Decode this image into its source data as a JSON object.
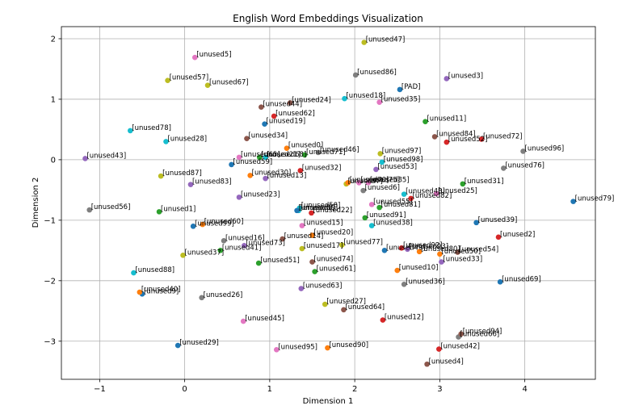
{
  "chart_data": {
    "type": "scatter",
    "title": "English Word Embeddings Visualization",
    "xlabel": "Dimension 1",
    "ylabel": "Dimension 2",
    "xlim": [
      -1.45,
      4.83
    ],
    "ylim": [
      -3.63,
      2.2
    ],
    "xticks": [
      -1,
      0,
      1,
      2,
      3,
      4
    ],
    "yticks": [
      -3,
      -2,
      -1,
      0,
      1,
      2
    ],
    "grid": true,
    "palette": [
      "#1f77b4",
      "#ff7f0e",
      "#2ca02c",
      "#d62728",
      "#9467bd",
      "#8c564b",
      "#e377c2",
      "#7f7f7f",
      "#bcbd22",
      "#17becf"
    ],
    "points": [
      {
        "label": "[PAD]",
        "x": 2.53,
        "y": 1.16,
        "color": "#1f77b4"
      },
      {
        "label": "[unused0]",
        "x": 1.2,
        "y": 0.19,
        "color": "#ff7f0e"
      },
      {
        "label": "[unused1]",
        "x": -0.3,
        "y": -0.86,
        "color": "#2ca02c"
      },
      {
        "label": "[unused2]",
        "x": 3.69,
        "y": -1.28,
        "color": "#d62728"
      },
      {
        "label": "[unused3]",
        "x": 3.08,
        "y": 1.34,
        "color": "#9467bd"
      },
      {
        "label": "[unused4]",
        "x": 2.85,
        "y": -3.38,
        "color": "#8c564b"
      },
      {
        "label": "[unused5]",
        "x": 0.12,
        "y": 1.69,
        "color": "#e377c2"
      },
      {
        "label": "[unused6]",
        "x": 2.1,
        "y": -0.51,
        "color": "#7f7f7f"
      },
      {
        "label": "[unused7]",
        "x": 1.9,
        "y": -0.4,
        "color": "#bcbd22"
      },
      {
        "label": "[unused8]",
        "x": 1.34,
        "y": -0.84,
        "color": "#17becf"
      },
      {
        "label": "[unused9]",
        "x": -0.5,
        "y": -2.22,
        "color": "#1f77b4"
      },
      {
        "label": "[unused10]",
        "x": 2.5,
        "y": -1.83,
        "color": "#ff7f0e"
      },
      {
        "label": "[unused11]",
        "x": 2.83,
        "y": 0.63,
        "color": "#2ca02c"
      },
      {
        "label": "[unused12]",
        "x": 2.33,
        "y": -2.65,
        "color": "#d62728"
      },
      {
        "label": "[unused13]",
        "x": 0.95,
        "y": -0.31,
        "color": "#9467bd"
      },
      {
        "label": "[unused14]",
        "x": 1.15,
        "y": -1.31,
        "color": "#8c564b"
      },
      {
        "label": "[unused15]",
        "x": 1.38,
        "y": -1.09,
        "color": "#e377c2"
      },
      {
        "label": "[unused16]",
        "x": 0.46,
        "y": -1.34,
        "color": "#7f7f7f"
      },
      {
        "label": "[unused17]",
        "x": 1.38,
        "y": -1.47,
        "color": "#bcbd22"
      },
      {
        "label": "[unused18]",
        "x": 1.88,
        "y": 1.01,
        "color": "#17becf"
      },
      {
        "label": "[unused19]",
        "x": 0.94,
        "y": 0.59,
        "color": "#1f77b4"
      },
      {
        "label": "[unused20]",
        "x": 1.5,
        "y": -1.25,
        "color": "#ff7f0e"
      },
      {
        "label": "[unused21]",
        "x": 0.88,
        "y": 0.04,
        "color": "#2ca02c"
      },
      {
        "label": "[unused22]",
        "x": 1.49,
        "y": -0.88,
        "color": "#d62728"
      },
      {
        "label": "[unused23]",
        "x": 0.64,
        "y": -0.62,
        "color": "#9467bd"
      },
      {
        "label": "[unused24]",
        "x": 1.24,
        "y": 0.94,
        "color": "#8c564b"
      },
      {
        "label": "[unused25]",
        "x": 2.96,
        "y": -0.56,
        "color": "#e377c2"
      },
      {
        "label": "[unused26]",
        "x": 0.2,
        "y": -2.28,
        "color": "#7f7f7f"
      },
      {
        "label": "[unused27]",
        "x": 1.65,
        "y": -2.39,
        "color": "#bcbd22"
      },
      {
        "label": "[unused28]",
        "x": -0.22,
        "y": 0.3,
        "color": "#17becf"
      },
      {
        "label": "[unused29]",
        "x": -0.08,
        "y": -3.07,
        "color": "#1f77b4"
      },
      {
        "label": "[unused30]",
        "x": 0.77,
        "y": -0.26,
        "color": "#ff7f0e"
      },
      {
        "label": "[unused31]",
        "x": 3.27,
        "y": -0.4,
        "color": "#2ca02c"
      },
      {
        "label": "[unused32]",
        "x": 1.36,
        "y": -0.18,
        "color": "#d62728"
      },
      {
        "label": "[unused33]",
        "x": 3.02,
        "y": -1.69,
        "color": "#9467bd"
      },
      {
        "label": "[unused34]",
        "x": 0.73,
        "y": 0.35,
        "color": "#8c564b"
      },
      {
        "label": "[unused35]",
        "x": 2.29,
        "y": 0.95,
        "color": "#e377c2"
      },
      {
        "label": "[unused36]",
        "x": 2.58,
        "y": -2.06,
        "color": "#7f7f7f"
      },
      {
        "label": "[unused37]",
        "x": -0.02,
        "y": -1.58,
        "color": "#bcbd22"
      },
      {
        "label": "[unused38]",
        "x": 2.2,
        "y": -1.09,
        "color": "#17becf"
      },
      {
        "label": "[unused39]",
        "x": 3.43,
        "y": -1.04,
        "color": "#1f77b4"
      },
      {
        "label": "[unused40]",
        "x": -0.53,
        "y": -2.19,
        "color": "#ff7f0e"
      },
      {
        "label": "[unused41]",
        "x": 0.42,
        "y": -1.5,
        "color": "#2ca02c"
      },
      {
        "label": "[unused42]",
        "x": 2.99,
        "y": -3.13,
        "color": "#d62728"
      },
      {
        "label": "[unused43]",
        "x": -1.17,
        "y": 0.02,
        "color": "#9467bd"
      },
      {
        "label": "[unused44]",
        "x": 0.9,
        "y": 0.87,
        "color": "#8c564b"
      },
      {
        "label": "[unused45]",
        "x": 0.69,
        "y": -2.67,
        "color": "#e377c2"
      },
      {
        "label": "[unused46]",
        "x": 1.57,
        "y": 0.12,
        "color": "#7f7f7f"
      },
      {
        "label": "[unused47]",
        "x": 2.11,
        "y": 1.94,
        "color": "#bcbd22"
      },
      {
        "label": "[unused48]",
        "x": 2.58,
        "y": -0.57,
        "color": "#17becf"
      },
      {
        "label": "[unused49]",
        "x": 2.35,
        "y": -1.5,
        "color": "#1f77b4"
      },
      {
        "label": "[unused50]",
        "x": 3.0,
        "y": -1.56,
        "color": "#ff7f0e"
      },
      {
        "label": "[unused51]",
        "x": 0.87,
        "y": -1.71,
        "color": "#2ca02c"
      },
      {
        "label": "[unused52]",
        "x": 3.08,
        "y": 0.29,
        "color": "#d62728"
      },
      {
        "label": "[unused53]",
        "x": 2.25,
        "y": -0.16,
        "color": "#9467bd"
      },
      {
        "label": "[unused54]",
        "x": 3.21,
        "y": -1.53,
        "color": "#8c564b"
      },
      {
        "label": "[unused55]",
        "x": 2.2,
        "y": -0.74,
        "color": "#e377c2"
      },
      {
        "label": "[unused56]",
        "x": -1.12,
        "y": -0.83,
        "color": "#7f7f7f"
      },
      {
        "label": "[unused57]",
        "x": -0.2,
        "y": 1.31,
        "color": "#bcbd22"
      },
      {
        "label": "[unused58]",
        "x": 1.35,
        "y": -0.8,
        "color": "#17becf"
      },
      {
        "label": "[unused59]",
        "x": 0.55,
        "y": -0.08,
        "color": "#1f77b4"
      },
      {
        "label": "[unused60]",
        "x": 0.21,
        "y": -1.07,
        "color": "#ff7f0e"
      },
      {
        "label": "[unused61]",
        "x": 1.53,
        "y": -1.85,
        "color": "#2ca02c"
      },
      {
        "label": "[unused62]",
        "x": 1.05,
        "y": 0.72,
        "color": "#d62728"
      },
      {
        "label": "[unused63]",
        "x": 1.37,
        "y": -2.13,
        "color": "#9467bd"
      },
      {
        "label": "[unused64]",
        "x": 1.87,
        "y": -2.48,
        "color": "#8c564b"
      },
      {
        "label": "[unused65]",
        "x": 0.64,
        "y": 0.04,
        "color": "#e377c2"
      },
      {
        "label": "[unused66]",
        "x": 3.22,
        "y": -2.93,
        "color": "#7f7f7f"
      },
      {
        "label": "[unused67]",
        "x": 0.27,
        "y": 1.23,
        "color": "#bcbd22"
      },
      {
        "label": "[unused68]",
        "x": 0.95,
        "y": 0.04,
        "color": "#17becf"
      },
      {
        "label": "[unused69]",
        "x": 3.71,
        "y": -2.02,
        "color": "#1f77b4"
      },
      {
        "label": "[unused70]",
        "x": 1.92,
        "y": -0.38,
        "color": "#ff7f0e"
      },
      {
        "label": "[unused71]",
        "x": 1.41,
        "y": 0.08,
        "color": "#2ca02c"
      },
      {
        "label": "[unused72]",
        "x": 3.49,
        "y": 0.34,
        "color": "#d62728"
      },
      {
        "label": "[unused73]",
        "x": 0.7,
        "y": -1.42,
        "color": "#9467bd"
      },
      {
        "label": "[unused74]",
        "x": 1.5,
        "y": -1.69,
        "color": "#8c564b"
      },
      {
        "label": "[unused75]",
        "x": 2.05,
        "y": -0.38,
        "color": "#e377c2"
      },
      {
        "label": "[unused76]",
        "x": 3.75,
        "y": -0.14,
        "color": "#7f7f7f"
      },
      {
        "label": "[unused77]",
        "x": 1.85,
        "y": -1.41,
        "color": "#bcbd22"
      },
      {
        "label": "[unused78]",
        "x": -0.64,
        "y": 0.48,
        "color": "#17becf"
      },
      {
        "label": "[unused79]",
        "x": 4.57,
        "y": -0.69,
        "color": "#1f77b4"
      },
      {
        "label": "[unused80]",
        "x": 2.76,
        "y": -1.52,
        "color": "#ff7f0e"
      },
      {
        "label": "[unused81]",
        "x": 2.29,
        "y": -0.79,
        "color": "#2ca02c"
      },
      {
        "label": "[unused82]",
        "x": 2.66,
        "y": -0.64,
        "color": "#d62728"
      },
      {
        "label": "[unused83]",
        "x": 0.07,
        "y": -0.41,
        "color": "#9467bd"
      },
      {
        "label": "[unused84]",
        "x": 2.94,
        "y": 0.38,
        "color": "#8c564b"
      },
      {
        "label": "[unused85]",
        "x": 2.16,
        "y": -0.38,
        "color": "#e377c2"
      },
      {
        "label": "[unused86]",
        "x": 2.01,
        "y": 1.4,
        "color": "#7f7f7f"
      },
      {
        "label": "[unused87]",
        "x": -0.28,
        "y": -0.27,
        "color": "#bcbd22"
      },
      {
        "label": "[unused88]",
        "x": -0.6,
        "y": -1.87,
        "color": "#17becf"
      },
      {
        "label": "[unused89]",
        "x": 1.32,
        "y": -0.84,
        "color": "#1f77b4"
      },
      {
        "label": "[unused90]",
        "x": 1.68,
        "y": -3.11,
        "color": "#ff7f0e"
      },
      {
        "label": "[unused91]",
        "x": 2.12,
        "y": -0.96,
        "color": "#2ca02c"
      },
      {
        "label": "[unused92]",
        "x": 2.55,
        "y": -1.46,
        "color": "#d62728"
      },
      {
        "label": "[unused93]",
        "x": 2.62,
        "y": -1.48,
        "color": "#9467bd"
      },
      {
        "label": "[unused94]",
        "x": 3.25,
        "y": -2.88,
        "color": "#8c564b"
      },
      {
        "label": "[unused95]",
        "x": 1.08,
        "y": -3.14,
        "color": "#e377c2"
      },
      {
        "label": "[unused96]",
        "x": 3.98,
        "y": 0.14,
        "color": "#7f7f7f"
      },
      {
        "label": "[unused97]",
        "x": 2.3,
        "y": 0.1,
        "color": "#bcbd22"
      },
      {
        "label": "[unused98]",
        "x": 2.32,
        "y": -0.04,
        "color": "#17becf"
      },
      {
        "label": "[unused99]",
        "x": 0.1,
        "y": -1.1,
        "color": "#1f77b4"
      }
    ]
  }
}
